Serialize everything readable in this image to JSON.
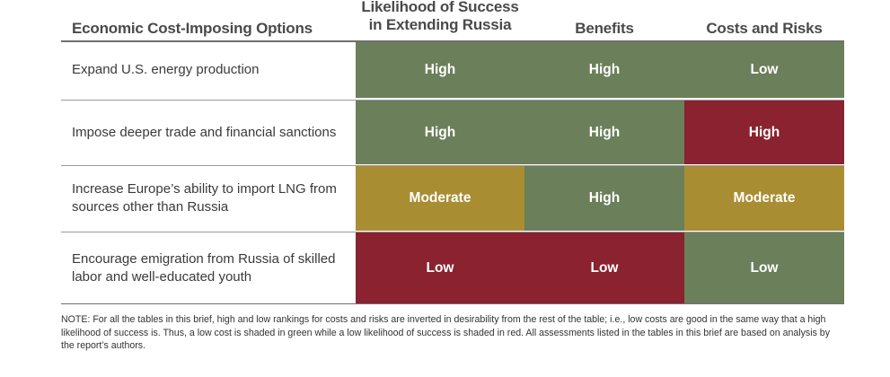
{
  "colors": {
    "high_good": "#6b7f5a",
    "moderate": "#a88d33",
    "bad": "#8a222f"
  },
  "table": {
    "headers": [
      "Economic Cost-Imposing Options",
      "Likelihood of Success in Extending Russia",
      "Benefits",
      "Costs and Risks"
    ],
    "header_lines": {
      "likelihood_line1": "Likelihood of Success",
      "likelihood_line2": "in Extending Russia"
    },
    "rows": [
      {
        "option_line1": "Expand U.S. energy production",
        "option_line2": "",
        "likelihood": "High",
        "benefits": "High",
        "costs": "Low"
      },
      {
        "option_line1": "Impose deeper trade and financial sanctions",
        "option_line2": "",
        "likelihood": "High",
        "benefits": "High",
        "costs": "High"
      },
      {
        "option_line1": "Increase Europe’s ability to import LNG from",
        "option_line2": "sources other than Russia",
        "likelihood": "Moderate",
        "benefits": "High",
        "costs": "Moderate"
      },
      {
        "option_line1": "Encourage emigration from Russia of skilled",
        "option_line2": "labor and well-educated youth",
        "likelihood": "Low",
        "benefits": "Low",
        "costs": "Low"
      }
    ]
  },
  "note": "NOTE: For all the tables in this brief, high and low rankings for costs and risks are inverted in desirability from the rest of the table; i.e., low costs are good in the same way that a high likelihood of success is. Thus, a low cost is shaded in green while a low likelihood of success is shaded in red. All assessments listed in the tables in this brief are based on analysis by the report’s authors."
}
